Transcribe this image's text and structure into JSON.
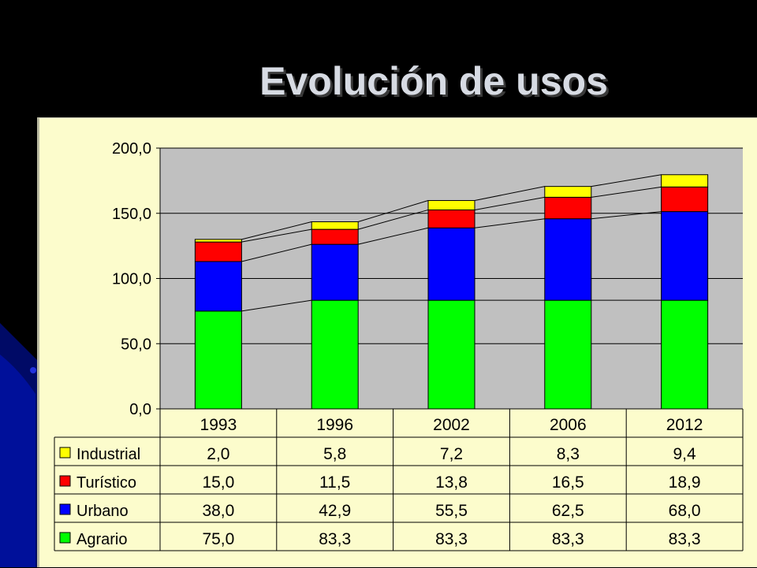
{
  "slide": {
    "title": "Evolución de usos"
  },
  "chart_data": {
    "type": "bar",
    "stacked": true,
    "categories": [
      "1993",
      "1996",
      "2002",
      "2006",
      "2012"
    ],
    "series": [
      {
        "name": "Agrario",
        "values": [
          75.0,
          83.3,
          83.3,
          83.3,
          83.3
        ],
        "labels": [
          "75,0",
          "83,3",
          "83,3",
          "83,3",
          "83,3"
        ],
        "color": "#00ff00"
      },
      {
        "name": "Urbano",
        "values": [
          38.0,
          42.9,
          55.5,
          62.5,
          68.0
        ],
        "labels": [
          "38,0",
          "42,9",
          "55,5",
          "62,5",
          "68,0"
        ],
        "color": "#0000ff"
      },
      {
        "name": "Turístico",
        "values": [
          15.0,
          11.5,
          13.8,
          16.5,
          18.9
        ],
        "labels": [
          "15,0",
          "11,5",
          "13,8",
          "16,5",
          "18,9"
        ],
        "color": "#ff0000"
      },
      {
        "name": "Industrial",
        "values": [
          2.0,
          5.8,
          7.2,
          8.3,
          9.4
        ],
        "labels": [
          "2,0",
          "5,8",
          "7,2",
          "8,3",
          "9,4"
        ],
        "color": "#ffff00"
      }
    ],
    "ylim": [
      0,
      200
    ],
    "yticks": [
      0,
      50,
      100,
      150,
      200
    ],
    "ytick_labels": [
      "0,0",
      "50,0",
      "100,0",
      "150,0",
      "200,0"
    ],
    "grid": true,
    "series_lines": true,
    "plot_background": "#c0c0c0",
    "legend": "data-table"
  }
}
